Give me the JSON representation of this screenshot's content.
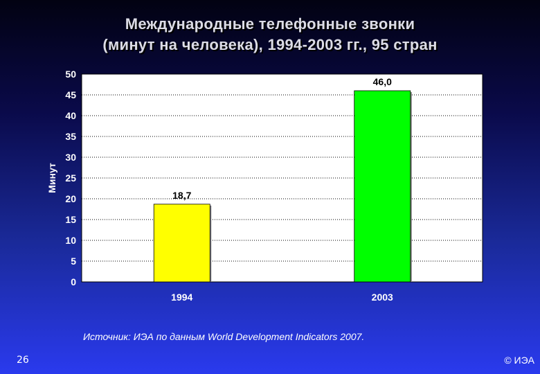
{
  "title_line1": "Международные телефонные звонки",
  "title_line2": "(минут на человека), 1994-2003 гг., 95 стран",
  "chart_data": {
    "type": "bar",
    "categories": [
      "1994",
      "2003"
    ],
    "values": [
      18.7,
      46.0
    ],
    "value_labels": [
      "18,7",
      "46,0"
    ],
    "bar_colors": [
      "#ffff00",
      "#00ff00"
    ],
    "ylabel": "Минут",
    "ylim": [
      0,
      50
    ],
    "yticks": [
      0,
      5,
      10,
      15,
      20,
      25,
      30,
      35,
      40,
      45,
      50
    ],
    "grid": true,
    "legend": "none",
    "plot_background": "#ffffff"
  },
  "source": "Источник: ИЭА по данным World Development Indicators 2007.",
  "page_number": "26",
  "copyright": "© ИЭА"
}
